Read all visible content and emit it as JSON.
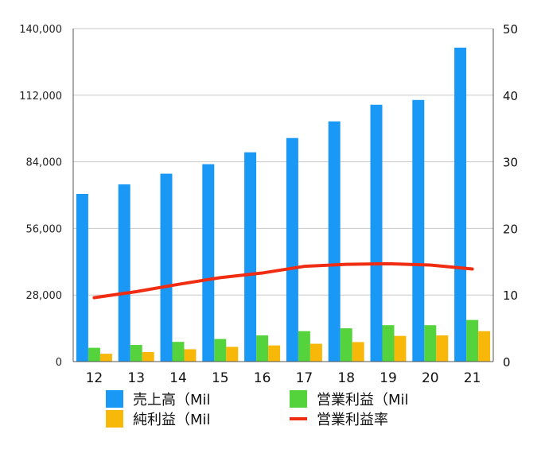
{
  "chart_data": {
    "type": "bar",
    "categories": [
      "12",
      "13",
      "14",
      "15",
      "16",
      "17",
      "18",
      "19",
      "20",
      "21"
    ],
    "series": [
      {
        "name": "売上高（Mil",
        "type": "bar",
        "axis": "left",
        "color": "#1a98f5",
        "values": [
          70500,
          74500,
          79000,
          83000,
          88000,
          94000,
          101000,
          108000,
          110000,
          132000
        ]
      },
      {
        "name": "営業利益（Mil",
        "type": "bar",
        "axis": "left",
        "color": "#55d33c",
        "values": [
          5800,
          7000,
          8300,
          9500,
          11000,
          12800,
          14000,
          15300,
          15300,
          17500
        ]
      },
      {
        "name": "純利益（Mil",
        "type": "bar",
        "axis": "left",
        "color": "#f8b80a",
        "values": [
          3300,
          4000,
          5200,
          6200,
          6800,
          7500,
          8200,
          10800,
          11000,
          12800
        ]
      },
      {
        "name": "営業利益率",
        "type": "line",
        "axis": "right",
        "color": "#f02d13",
        "values": [
          9.6,
          10.5,
          11.6,
          12.6,
          13.3,
          14.3,
          14.6,
          14.7,
          14.5,
          13.9
        ]
      }
    ],
    "y_left": {
      "min": 0,
      "max": 140000,
      "ticks": [
        "0",
        "28,000",
        "56,000",
        "84,000",
        "112,000",
        "140,000"
      ]
    },
    "y_right": {
      "min": 0,
      "max": 50,
      "ticks": [
        "0",
        "10",
        "20",
        "30",
        "40",
        "50"
      ]
    },
    "grid": true,
    "legend_position": "bottom"
  }
}
